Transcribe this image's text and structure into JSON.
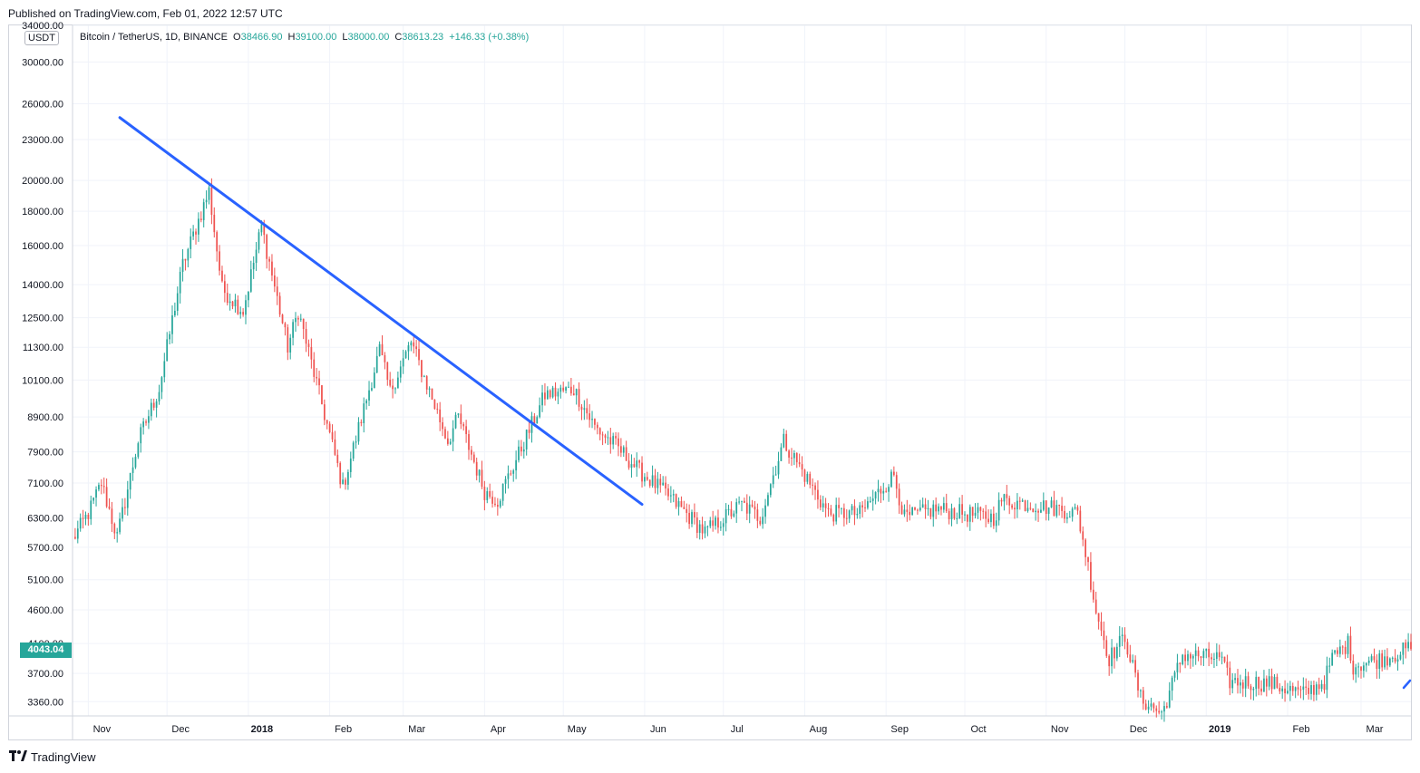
{
  "published": "Published on TradingView.com, Feb 01, 2022 12:57 UTC",
  "symbol": {
    "name": "Bitcoin / TetherUS, 1D, BINANCE",
    "open_label": "O",
    "open": "38466.90",
    "high_label": "H",
    "high": "39100.00",
    "low_label": "L",
    "low": "38000.00",
    "close_label": "C",
    "close": "38613.23",
    "change": "+146.33 (+0.38%)"
  },
  "currency_badge": "USDT",
  "last_price_badge": "4043.04",
  "footer_brand": "TradingView",
  "colors": {
    "up": "#26a69a",
    "down": "#ef5350",
    "trendline": "#2962ff",
    "grid": "#f0f3fa"
  },
  "chart_data": {
    "type": "candlestick",
    "y_scale": "log",
    "ylim": [
      3200,
      34000
    ],
    "y_ticks": [
      "34000.00",
      "30000.00",
      "26000.00",
      "23000.00",
      "20000.00",
      "18000.00",
      "16000.00",
      "14000.00",
      "12500.00",
      "11300.00",
      "10100.00",
      "8900.00",
      "7900.00",
      "7100.00",
      "6300.00",
      "5700.00",
      "5100.00",
      "4600.00",
      "4100.00",
      "3700.00",
      "3360.00"
    ],
    "x_ticks": [
      "Nov",
      "Dec",
      "2018",
      "Feb",
      "Mar",
      "Apr",
      "May",
      "Jun",
      "Jul",
      "Aug",
      "Sep",
      "Oct",
      "Nov",
      "Dec",
      "2019",
      "Feb",
      "Mar"
    ],
    "x_range": [
      "2017-10-26",
      "2019-03-20"
    ],
    "series_close_anchors": [
      [
        "2017-10-26",
        5850
      ],
      [
        "2017-11-01",
        6400
      ],
      [
        "2017-11-06",
        7100
      ],
      [
        "2017-11-12",
        5900
      ],
      [
        "2017-11-20",
        8200
      ],
      [
        "2017-11-28",
        9800
      ],
      [
        "2017-12-07",
        15000
      ],
      [
        "2017-12-17",
        19300
      ],
      [
        "2017-12-22",
        13800
      ],
      [
        "2017-12-30",
        12800
      ],
      [
        "2018-01-06",
        17100
      ],
      [
        "2018-01-16",
        11300
      ],
      [
        "2018-01-20",
        12800
      ],
      [
        "2018-02-06",
        7000
      ],
      [
        "2018-02-20",
        11200
      ],
      [
        "2018-02-24",
        9700
      ],
      [
        "2018-03-04",
        11500
      ],
      [
        "2018-03-18",
        8200
      ],
      [
        "2018-03-22",
        8900
      ],
      [
        "2018-04-01",
        6900
      ],
      [
        "2018-04-06",
        6700
      ],
      [
        "2018-04-15",
        8000
      ],
      [
        "2018-04-24",
        9600
      ],
      [
        "2018-05-05",
        9800
      ],
      [
        "2018-05-13",
        8600
      ],
      [
        "2018-05-22",
        8000
      ],
      [
        "2018-05-30",
        7400
      ],
      [
        "2018-06-10",
        6800
      ],
      [
        "2018-06-24",
        6000
      ],
      [
        "2018-07-08",
        6600
      ],
      [
        "2018-07-15",
        6300
      ],
      [
        "2018-07-24",
        8200
      ],
      [
        "2018-08-10",
        6400
      ],
      [
        "2018-08-22",
        6400
      ],
      [
        "2018-09-04",
        7300
      ],
      [
        "2018-09-08",
        6300
      ],
      [
        "2018-09-20",
        6500
      ],
      [
        "2018-10-12",
        6300
      ],
      [
        "2018-10-15",
        6700
      ],
      [
        "2018-11-06",
        6500
      ],
      [
        "2018-11-13",
        6400
      ],
      [
        "2018-11-16",
        5600
      ],
      [
        "2018-11-20",
        4600
      ],
      [
        "2018-11-25",
        3900
      ],
      [
        "2018-12-01",
        4200
      ],
      [
        "2018-12-07",
        3400
      ],
      [
        "2018-12-15",
        3220
      ],
      [
        "2018-12-23",
        3950
      ],
      [
        "2019-01-06",
        3900
      ],
      [
        "2019-01-10",
        3600
      ],
      [
        "2019-01-25",
        3580
      ],
      [
        "2019-02-07",
        3450
      ],
      [
        "2019-02-15",
        3600
      ],
      [
        "2019-02-18",
        3900
      ],
      [
        "2019-02-24",
        4100
      ],
      [
        "2019-02-26",
        3800
      ],
      [
        "2019-03-10",
        3900
      ],
      [
        "2019-03-20",
        4043
      ]
    ],
    "trendline": [
      [
        "2017-11-13",
        24800
      ],
      [
        "2018-05-31",
        6600
      ]
    ]
  }
}
